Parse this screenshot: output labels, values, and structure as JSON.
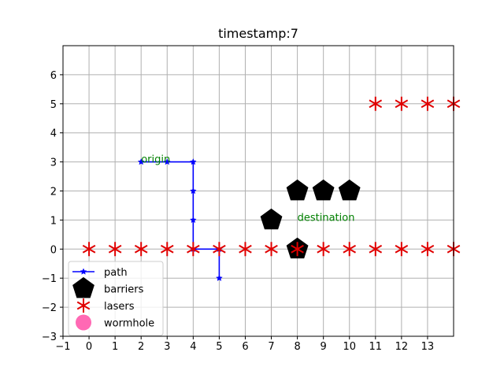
{
  "chart_data": {
    "type": "scatter",
    "title": "timestamp:7",
    "xlabel": "",
    "ylabel": "",
    "xlim": [
      -1,
      14
    ],
    "ylim": [
      -3,
      7
    ],
    "x_ticks": [
      -1,
      0,
      1,
      2,
      3,
      4,
      5,
      6,
      7,
      8,
      9,
      10,
      11,
      12,
      13
    ],
    "y_ticks": [
      -3,
      -2,
      -1,
      0,
      1,
      2,
      3,
      4,
      5,
      6
    ],
    "grid": true,
    "legend_position": "lower-left",
    "series": [
      {
        "name": "path",
        "kind": "line",
        "marker": "star",
        "color": "#0000ff",
        "points": [
          [
            2,
            3
          ],
          [
            3,
            3
          ],
          [
            4,
            3
          ],
          [
            4,
            2
          ],
          [
            4,
            1
          ],
          [
            4,
            0
          ],
          [
            5,
            0
          ],
          [
            5,
            -1
          ]
        ]
      },
      {
        "name": "barriers",
        "kind": "scatter",
        "marker": "pentagon",
        "color": "#000000",
        "points": [
          [
            7,
            1
          ],
          [
            8,
            2
          ],
          [
            9,
            2
          ],
          [
            10,
            2
          ],
          [
            8,
            0
          ]
        ]
      },
      {
        "name": "lasers",
        "kind": "scatter",
        "marker": "asterisk",
        "color": "#e00000",
        "points": [
          [
            0,
            0
          ],
          [
            1,
            0
          ],
          [
            2,
            0
          ],
          [
            3,
            0
          ],
          [
            4,
            0
          ],
          [
            5,
            0
          ],
          [
            6,
            0
          ],
          [
            7,
            0
          ],
          [
            8,
            0
          ],
          [
            9,
            0
          ],
          [
            10,
            0
          ],
          [
            11,
            0
          ],
          [
            12,
            0
          ],
          [
            13,
            0
          ],
          [
            14,
            0
          ],
          [
            11,
            5
          ],
          [
            12,
            5
          ],
          [
            13,
            5
          ],
          [
            14,
            5
          ]
        ]
      },
      {
        "name": "wormhole",
        "kind": "scatter",
        "marker": "circle",
        "color": "#ff69b4",
        "points": []
      }
    ],
    "annotations": [
      {
        "text": "origin",
        "x": 2,
        "y": 3,
        "color": "#008000"
      },
      {
        "text": "destination",
        "x": 8,
        "y": 1,
        "color": "#008000"
      }
    ]
  }
}
